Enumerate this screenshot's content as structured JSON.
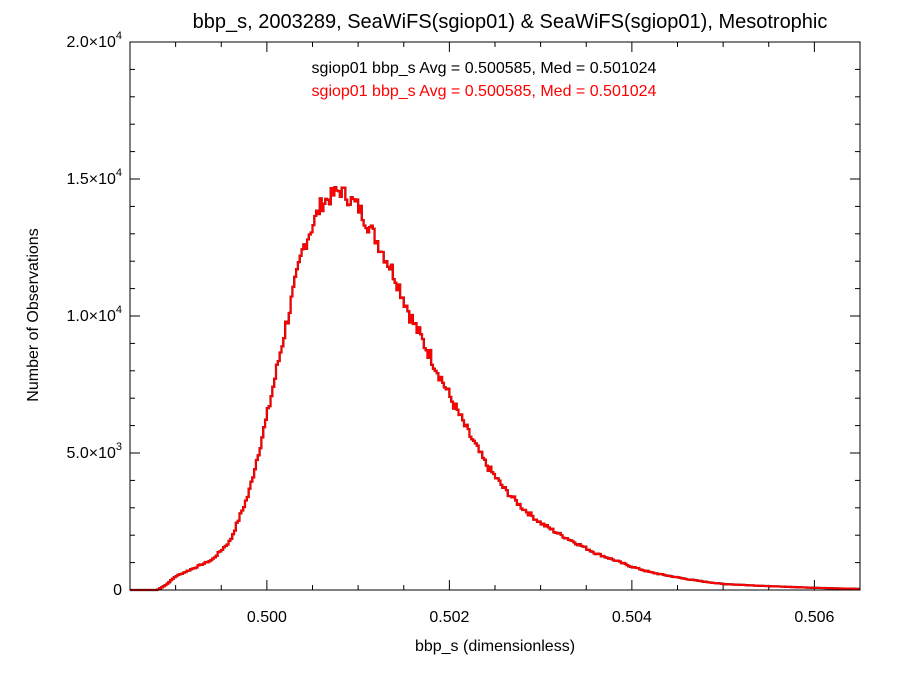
{
  "chart_data": {
    "type": "line",
    "title": "bbp_s, 2003289, SeaWiFS(sgiop01) & SeaWiFS(sgiop01), Mesotrophic",
    "xlabel": "bbp_s (dimensionless)",
    "ylabel": "Number of Observations",
    "xlim": [
      0.4985,
      0.5065
    ],
    "ylim": [
      0,
      20000
    ],
    "x_ticks": [
      {
        "value": 0.5,
        "label": "0.500"
      },
      {
        "value": 0.502,
        "label": "0.502"
      },
      {
        "value": 0.504,
        "label": "0.504"
      },
      {
        "value": 0.506,
        "label": "0.506"
      }
    ],
    "y_ticks": [
      {
        "value": 0,
        "mant": "0",
        "exp": ""
      },
      {
        "value": 5000,
        "mant": "5.0×10",
        "exp": "3"
      },
      {
        "value": 10000,
        "mant": "1.0×10",
        "exp": "4"
      },
      {
        "value": 15000,
        "mant": "1.5×10",
        "exp": "4"
      },
      {
        "value": 20000,
        "mant": "2.0×10",
        "exp": "4"
      }
    ],
    "annotations": [
      {
        "text": "sgiop01 bbp_s Avg = 0.500585, Med = 0.501024",
        "color": "#000000"
      },
      {
        "text": "sgiop01 bbp_s Avg = 0.500585, Med = 0.501024",
        "color": "#ff0000"
      }
    ],
    "series": [
      {
        "color": "#000000",
        "x": [
          0.4985,
          0.4988,
          0.4989,
          0.499,
          0.4992,
          0.4994,
          0.4996,
          0.4998,
          0.5,
          0.5002,
          0.5004,
          0.5006,
          0.5008,
          0.501,
          0.5012,
          0.5014,
          0.5016,
          0.5018,
          0.502,
          0.5022,
          0.5024,
          0.5026,
          0.5028,
          0.503,
          0.5032,
          0.5034,
          0.5036,
          0.5038,
          0.504,
          0.5042,
          0.5044,
          0.5046,
          0.5048,
          0.505,
          0.5055,
          0.506,
          0.5065
        ],
        "y": [
          0,
          0,
          200,
          500,
          800,
          1100,
          1800,
          3500,
          6300,
          9500,
          12500,
          14100,
          14600,
          14000,
          12800,
          11500,
          9800,
          8500,
          7100,
          5800,
          4600,
          3700,
          3000,
          2450,
          2050,
          1700,
          1350,
          1100,
          850,
          650,
          520,
          400,
          300,
          220,
          140,
          80,
          40
        ]
      },
      {
        "color": "#ff0000",
        "x": [
          0.4985,
          0.4988,
          0.4989,
          0.499,
          0.4992,
          0.4994,
          0.4996,
          0.4998,
          0.5,
          0.5002,
          0.5004,
          0.5006,
          0.5008,
          0.501,
          0.5012,
          0.5014,
          0.5016,
          0.5018,
          0.502,
          0.5022,
          0.5024,
          0.5026,
          0.5028,
          0.503,
          0.5032,
          0.5034,
          0.5036,
          0.5038,
          0.504,
          0.5042,
          0.5044,
          0.5046,
          0.5048,
          0.505,
          0.5055,
          0.506,
          0.5065
        ],
        "y": [
          0,
          0,
          200,
          500,
          800,
          1100,
          1800,
          3500,
          6300,
          9500,
          12500,
          14100,
          14600,
          14000,
          12800,
          11500,
          9800,
          8500,
          7100,
          5800,
          4600,
          3700,
          3000,
          2450,
          2050,
          1700,
          1350,
          1100,
          850,
          650,
          520,
          400,
          300,
          220,
          140,
          80,
          40
        ]
      }
    ]
  }
}
